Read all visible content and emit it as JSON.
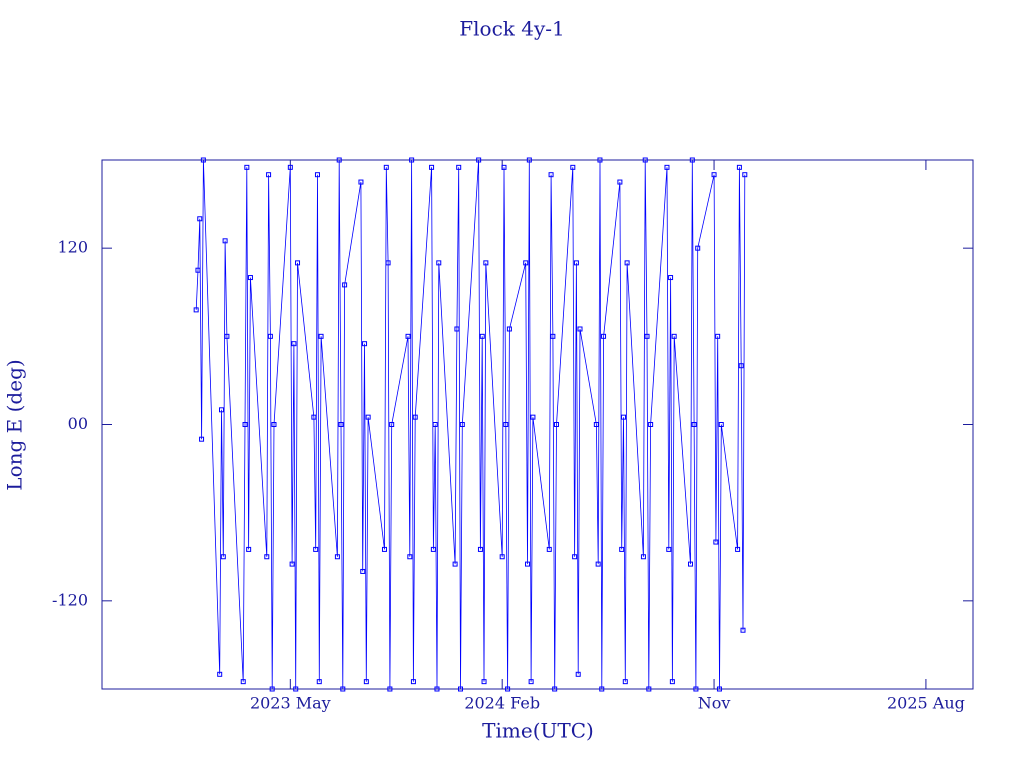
{
  "chart_data": {
    "type": "line",
    "title": "Flock 4y-1",
    "xlabel": "Time(UTC)",
    "ylabel": "Long E (deg)",
    "x": [
      "2023-01",
      "2023-01",
      "2023-01",
      "2023-01",
      "2023-01",
      "2023-02",
      "2023-02",
      "2023-02",
      "2023-02",
      "2023-02",
      "2023-03",
      "2023-03",
      "2023-03",
      "2023-03",
      "2023-03",
      "2023-04",
      "2023-04",
      "2023-04",
      "2023-04",
      "2023-04",
      "2023-05",
      "2023-05",
      "2023-05",
      "2023-05",
      "2023-05",
      "2023-06",
      "2023-06",
      "2023-06",
      "2023-06",
      "2023-06",
      "2023-07",
      "2023-07",
      "2023-07",
      "2023-07",
      "2023-07",
      "2023-08",
      "2023-08",
      "2023-08",
      "2023-08",
      "2023-08",
      "2023-09",
      "2023-09",
      "2023-09",
      "2023-09",
      "2023-09",
      "2023-10",
      "2023-10",
      "2023-10",
      "2023-10",
      "2023-10",
      "2023-11",
      "2023-11",
      "2023-11",
      "2023-11",
      "2023-11",
      "2023-12",
      "2023-12",
      "2023-12",
      "2023-12",
      "2023-12",
      "2024-01",
      "2024-01",
      "2024-01",
      "2024-01",
      "2024-01",
      "2024-02",
      "2024-02",
      "2024-02",
      "2024-02",
      "2024-02",
      "2024-03",
      "2024-03",
      "2024-03",
      "2024-03",
      "2024-03",
      "2024-04",
      "2024-04",
      "2024-04",
      "2024-04",
      "2024-04",
      "2024-05",
      "2024-05",
      "2024-05",
      "2024-05",
      "2024-05",
      "2024-06",
      "2024-06",
      "2024-06",
      "2024-06",
      "2024-06",
      "2024-07",
      "2024-07",
      "2024-07",
      "2024-07",
      "2024-07",
      "2024-08",
      "2024-08",
      "2024-08",
      "2024-08",
      "2024-08",
      "2024-09",
      "2024-09",
      "2024-09",
      "2024-09",
      "2024-09",
      "2024-10",
      "2024-10",
      "2024-10",
      "2024-10",
      "2024-10",
      "2024-11",
      "2024-11",
      "2024-11",
      "2024-11",
      "2024-11",
      "2024-12",
      "2024-12",
      "2024-12",
      "2024-12",
      "2024-12"
    ],
    "series": [
      {
        "name": "Flock 4y-1",
        "color": "#0000ff",
        "values": [
          78,
          105,
          140,
          -10,
          180,
          -170,
          10,
          -90,
          125,
          60,
          -175,
          0,
          175,
          -85,
          100,
          -90,
          170,
          60,
          -180,
          0,
          175,
          -95,
          55,
          -180,
          110,
          5,
          -85,
          170,
          -175,
          60,
          -90,
          180,
          0,
          -180,
          95,
          165,
          -100,
          55,
          -175,
          5,
          -85,
          175,
          110,
          -180,
          0,
          60,
          -90,
          180,
          -175,
          5,
          175,
          -85,
          0,
          -180,
          110,
          -95,
          65,
          175,
          -180,
          0,
          180,
          -85,
          60,
          -175,
          110,
          -90,
          175,
          0,
          -180,
          65,
          110,
          -95,
          180,
          -175,
          5,
          -85,
          170,
          60,
          -180,
          0,
          175,
          -90,
          110,
          -170,
          65,
          0,
          -95,
          180,
          -180,
          60,
          165,
          -85,
          5,
          -175,
          110,
          -90,
          180,
          60,
          -180,
          0,
          175,
          -85,
          100,
          -175,
          60,
          -95,
          180,
          0,
          -180,
          120,
          170,
          -80,
          60,
          -180,
          0,
          -85,
          175,
          40,
          -140,
          170
        ]
      }
    ],
    "xlim": [
      "2022-09",
      "2025-10"
    ],
    "xticks": [
      {
        "value": "2023-05",
        "label": "2023 May"
      },
      {
        "value": "2024-02",
        "label": "2024 Feb"
      },
      {
        "value": "2024-11",
        "label": "Nov"
      },
      {
        "value": "2025-08",
        "label": "2025 Aug"
      }
    ],
    "ylim": [
      -180,
      180
    ],
    "yticks": [
      -120,
      {
        "value": 0,
        "label": "00"
      },
      120
    ]
  }
}
